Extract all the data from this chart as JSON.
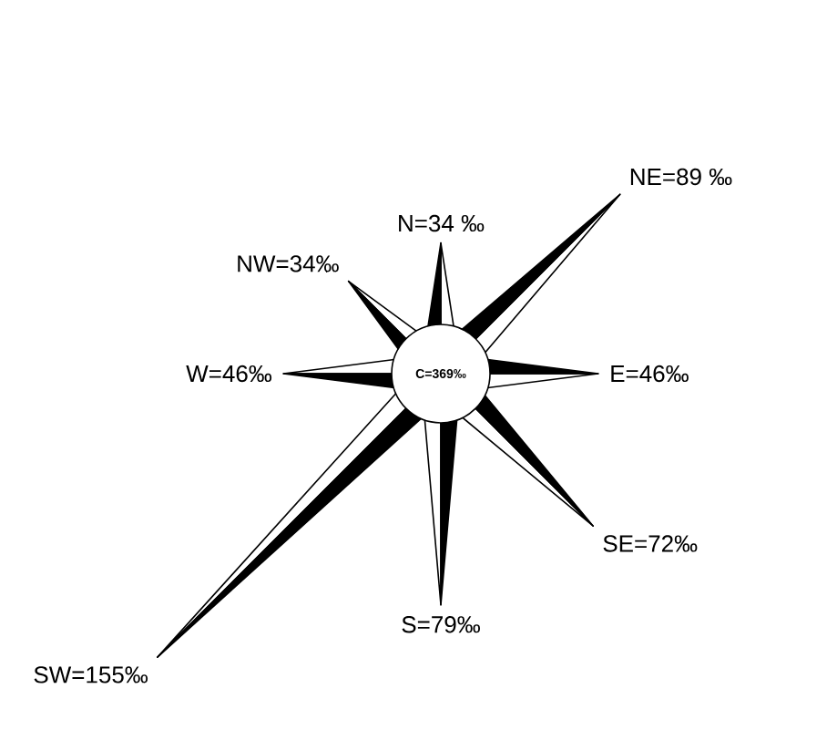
{
  "chart_data": {
    "type": "other",
    "categories": [
      "N=",
      "NE=",
      "E=",
      "SE=",
      "S=",
      "SW=",
      "W=",
      "NW="
    ],
    "values": [
      34,
      89,
      46,
      72,
      79,
      155,
      46,
      34
    ],
    "value_labels": [
      "34 ‰",
      "89 ‰",
      "46‰",
      "72‰",
      "79‰",
      "155‰",
      "46‰",
      "34‰"
    ],
    "annotations": [
      "C=369‰"
    ]
  }
}
